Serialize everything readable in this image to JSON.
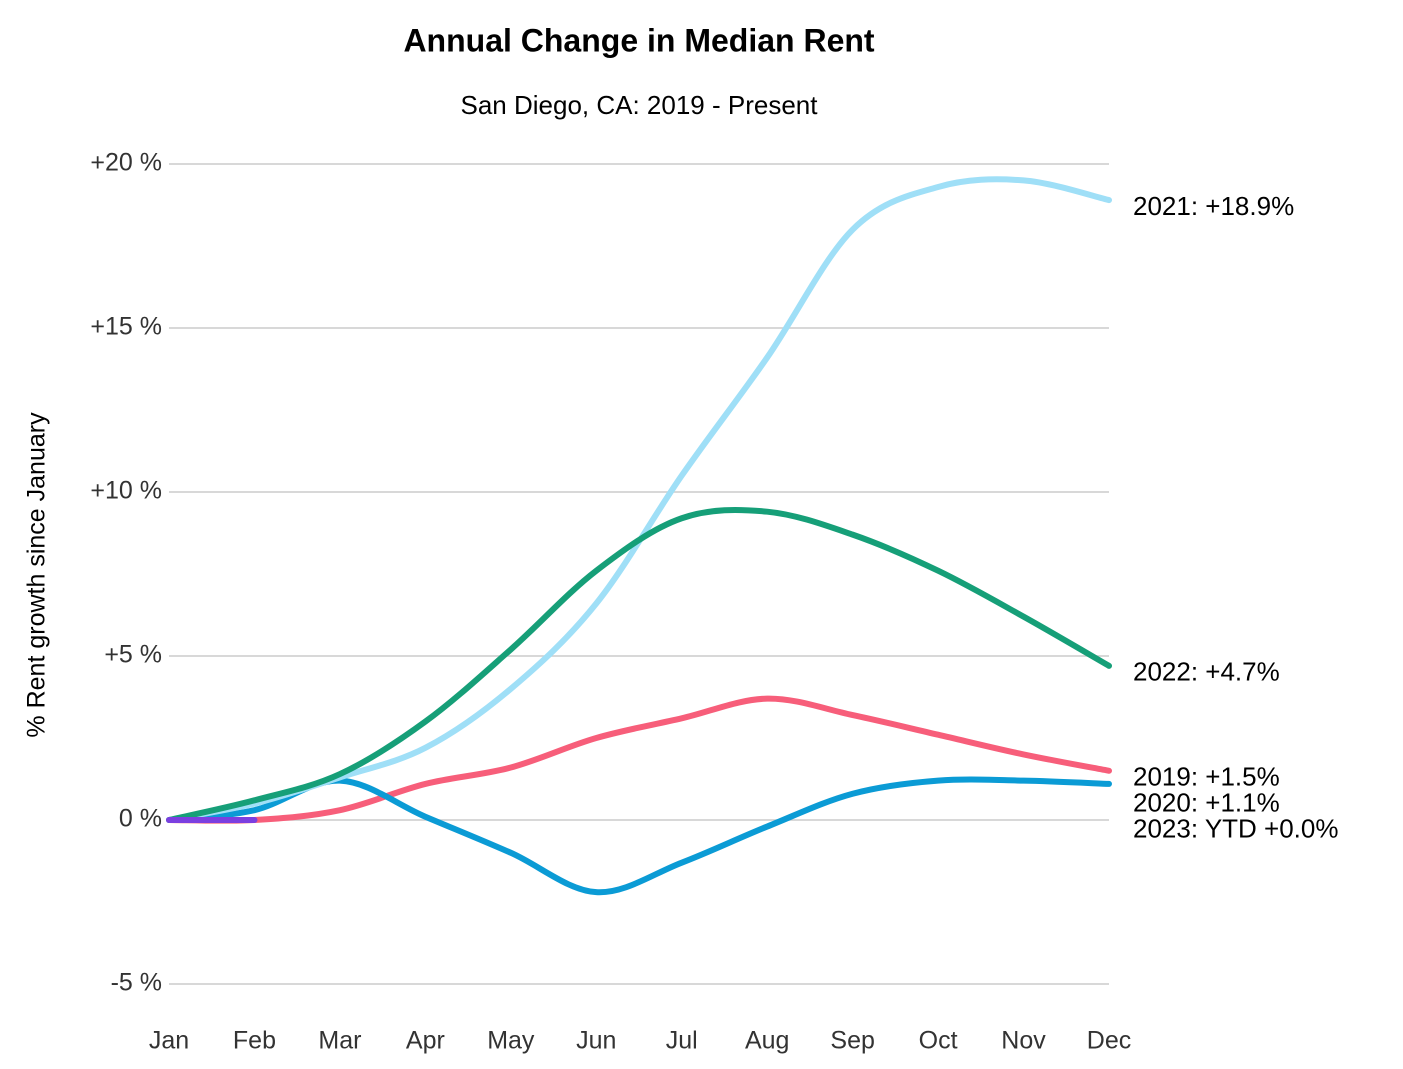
{
  "chart_data": {
    "type": "line",
    "title": "Annual Change in Median Rent",
    "subtitle": "San Diego, CA: 2019 - Present",
    "y_label": "% Rent growth since January",
    "categories": [
      "Jan",
      "Feb",
      "Mar",
      "Apr",
      "May",
      "Jun",
      "Jul",
      "Aug",
      "Sep",
      "Oct",
      "Nov",
      "Dec"
    ],
    "ylim": [
      -5,
      20
    ],
    "yticks": [
      {
        "value": 20,
        "label": "+20 %"
      },
      {
        "value": 15,
        "label": "+15 %"
      },
      {
        "value": 10,
        "label": "+10 %"
      },
      {
        "value": 5,
        "label": "+5 %"
      },
      {
        "value": 0,
        "label": "0 %"
      },
      {
        "value": -5,
        "label": "-5 %"
      }
    ],
    "grid": true,
    "series": [
      {
        "name": "2019",
        "color": "#f75e7a",
        "end_label": "2019: +1.5%",
        "values": [
          0,
          0,
          0.3,
          1.1,
          1.6,
          2.5,
          3.1,
          3.7,
          3.2,
          2.6,
          2.0,
          1.5
        ]
      },
      {
        "name": "2020",
        "color": "#0b9bd5",
        "end_label": "2020: +1.1%",
        "values": [
          0,
          0.3,
          1.2,
          0.1,
          -1.0,
          -2.2,
          -1.3,
          -0.2,
          0.8,
          1.2,
          1.2,
          1.1
        ]
      },
      {
        "name": "2021",
        "color": "#9fdff7",
        "end_label": "2021: +18.9%",
        "values": [
          0,
          0.5,
          1.3,
          2.2,
          4.0,
          6.6,
          10.5,
          14.1,
          18.0,
          19.3,
          19.5,
          18.9
        ]
      },
      {
        "name": "2022",
        "color": "#169f78",
        "end_label": "2022: +4.7%",
        "values": [
          0,
          0.6,
          1.4,
          3.0,
          5.2,
          7.6,
          9.2,
          9.4,
          8.7,
          7.6,
          6.2,
          4.7
        ]
      },
      {
        "name": "2023",
        "color": "#7b3fe0",
        "end_label": "2023: YTD +0.0%",
        "values": [
          0,
          0,
          null,
          null,
          null,
          null,
          null,
          null,
          null,
          null,
          null,
          null
        ]
      }
    ]
  }
}
